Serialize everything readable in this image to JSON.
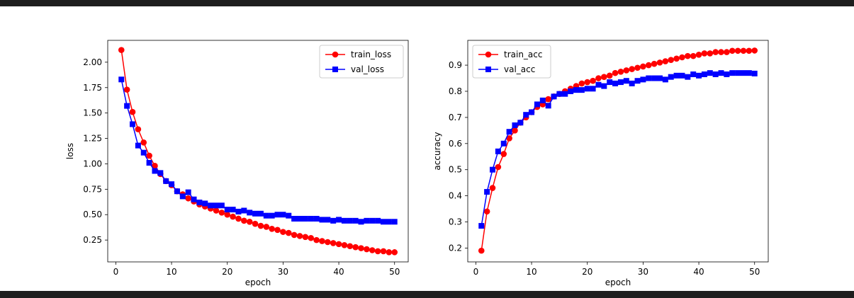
{
  "chart_data": [
    {
      "type": "line",
      "xlabel": "epoch",
      "ylabel": "loss",
      "xlim": [
        -1.45,
        52.45
      ],
      "ylim": [
        0.035,
        2.215
      ],
      "xticks": [
        0,
        10,
        20,
        30,
        40,
        50
      ],
      "yticks": [
        0.25,
        0.5,
        0.75,
        1.0,
        1.25,
        1.5,
        1.75,
        2.0
      ],
      "ytick_labels": [
        "0.25",
        "0.50",
        "0.75",
        "1.00",
        "1.25",
        "1.50",
        "1.75",
        "2.00"
      ],
      "legend": "upper right",
      "x": [
        1,
        2,
        3,
        4,
        5,
        6,
        7,
        8,
        9,
        10,
        11,
        12,
        13,
        14,
        15,
        16,
        17,
        18,
        19,
        20,
        21,
        22,
        23,
        24,
        25,
        26,
        27,
        28,
        29,
        30,
        31,
        32,
        33,
        34,
        35,
        36,
        37,
        38,
        39,
        40,
        41,
        42,
        43,
        44,
        45,
        46,
        47,
        48,
        49,
        50
      ],
      "series": [
        {
          "name": "train_loss",
          "color": "#ff0000",
          "marker": "circle",
          "values": [
            2.12,
            1.73,
            1.51,
            1.34,
            1.21,
            1.08,
            0.98,
            0.9,
            0.83,
            0.79,
            0.73,
            0.7,
            0.66,
            0.63,
            0.6,
            0.58,
            0.56,
            0.54,
            0.52,
            0.5,
            0.48,
            0.46,
            0.44,
            0.43,
            0.41,
            0.39,
            0.38,
            0.36,
            0.35,
            0.33,
            0.32,
            0.3,
            0.29,
            0.28,
            0.27,
            0.25,
            0.24,
            0.23,
            0.22,
            0.21,
            0.2,
            0.19,
            0.18,
            0.17,
            0.16,
            0.15,
            0.14,
            0.14,
            0.13,
            0.13
          ]
        },
        {
          "name": "val_loss",
          "color": "#0000ff",
          "marker": "square",
          "values": [
            1.83,
            1.57,
            1.39,
            1.18,
            1.11,
            1.01,
            0.93,
            0.91,
            0.83,
            0.8,
            0.73,
            0.68,
            0.72,
            0.65,
            0.62,
            0.61,
            0.59,
            0.59,
            0.59,
            0.55,
            0.55,
            0.53,
            0.54,
            0.52,
            0.51,
            0.51,
            0.49,
            0.49,
            0.5,
            0.5,
            0.49,
            0.46,
            0.46,
            0.46,
            0.46,
            0.46,
            0.45,
            0.45,
            0.44,
            0.45,
            0.44,
            0.44,
            0.44,
            0.43,
            0.44,
            0.44,
            0.44,
            0.43,
            0.43,
            0.43
          ]
        }
      ]
    },
    {
      "type": "line",
      "xlabel": "epoch",
      "ylabel": "accuracy",
      "xlim": [
        -1.45,
        52.45
      ],
      "ylim": [
        0.147,
        0.995
      ],
      "xticks": [
        0,
        10,
        20,
        30,
        40,
        50
      ],
      "yticks": [
        0.2,
        0.3,
        0.4,
        0.5,
        0.6,
        0.7,
        0.8,
        0.9
      ],
      "ytick_labels": [
        "0.2",
        "0.3",
        "0.4",
        "0.5",
        "0.6",
        "0.7",
        "0.8",
        "0.9"
      ],
      "legend": "upper left",
      "x": [
        1,
        2,
        3,
        4,
        5,
        6,
        7,
        8,
        9,
        10,
        11,
        12,
        13,
        14,
        15,
        16,
        17,
        18,
        19,
        20,
        21,
        22,
        23,
        24,
        25,
        26,
        27,
        28,
        29,
        30,
        31,
        32,
        33,
        34,
        35,
        36,
        37,
        38,
        39,
        40,
        41,
        42,
        43,
        44,
        45,
        46,
        47,
        48,
        49,
        50
      ],
      "series": [
        {
          "name": "train_acc",
          "color": "#ff0000",
          "marker": "circle",
          "values": [
            0.19,
            0.34,
            0.43,
            0.51,
            0.56,
            0.62,
            0.65,
            0.68,
            0.7,
            0.72,
            0.74,
            0.75,
            0.77,
            0.78,
            0.79,
            0.8,
            0.81,
            0.82,
            0.83,
            0.835,
            0.84,
            0.85,
            0.855,
            0.86,
            0.87,
            0.875,
            0.88,
            0.885,
            0.89,
            0.895,
            0.9,
            0.905,
            0.91,
            0.915,
            0.92,
            0.925,
            0.93,
            0.935,
            0.935,
            0.94,
            0.945,
            0.945,
            0.95,
            0.95,
            0.95,
            0.955,
            0.955,
            0.955,
            0.955,
            0.956
          ]
        },
        {
          "name": "val_acc",
          "color": "#0000ff",
          "marker": "square",
          "values": [
            0.285,
            0.415,
            0.5,
            0.57,
            0.6,
            0.645,
            0.67,
            0.68,
            0.71,
            0.72,
            0.75,
            0.765,
            0.745,
            0.78,
            0.79,
            0.79,
            0.8,
            0.805,
            0.805,
            0.81,
            0.81,
            0.825,
            0.82,
            0.835,
            0.83,
            0.835,
            0.84,
            0.83,
            0.84,
            0.845,
            0.85,
            0.85,
            0.85,
            0.845,
            0.855,
            0.86,
            0.86,
            0.855,
            0.865,
            0.86,
            0.865,
            0.87,
            0.865,
            0.87,
            0.865,
            0.87,
            0.87,
            0.87,
            0.87,
            0.868
          ]
        }
      ]
    }
  ]
}
